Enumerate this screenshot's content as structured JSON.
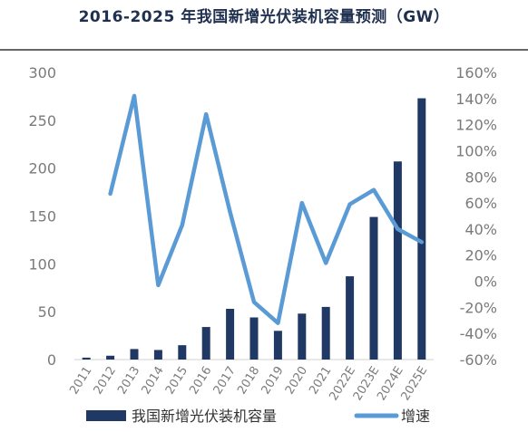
{
  "chart_data": {
    "type": "bar",
    "title": "2016-2025 年我国新增光伏装机容量预测（GW）",
    "categories": [
      "2011",
      "2012",
      "2013",
      "2014",
      "2015",
      "2016",
      "2017",
      "2018",
      "2019",
      "2020",
      "2021",
      "2022E",
      "2023E",
      "2024E",
      "2025E"
    ],
    "series": [
      {
        "name": "我国新增光伏装机容量",
        "type": "bar",
        "axis": "left",
        "color": "#203864",
        "values": [
          2,
          4,
          11,
          10,
          15,
          34,
          53,
          44,
          30,
          48,
          55,
          87,
          149,
          207,
          273
        ]
      },
      {
        "name": "增速",
        "type": "line",
        "axis": "right",
        "color": "#5b9bd5",
        "values": [
          null,
          67,
          142,
          -3,
          43,
          128,
          53,
          -16,
          -32,
          60,
          14,
          59,
          70,
          40,
          30
        ]
      }
    ],
    "y_left": {
      "min": 0,
      "max": 300,
      "ticks": [
        "0",
        "50",
        "100",
        "150",
        "200",
        "250",
        "300"
      ]
    },
    "y_right": {
      "min": -60,
      "max": 160,
      "ticks": [
        "-60%",
        "-40%",
        "-20%",
        "0%",
        "20%",
        "40%",
        "60%",
        "80%",
        "100%",
        "120%",
        "140%",
        "160%"
      ]
    },
    "legend_position": "bottom",
    "grid": false
  }
}
